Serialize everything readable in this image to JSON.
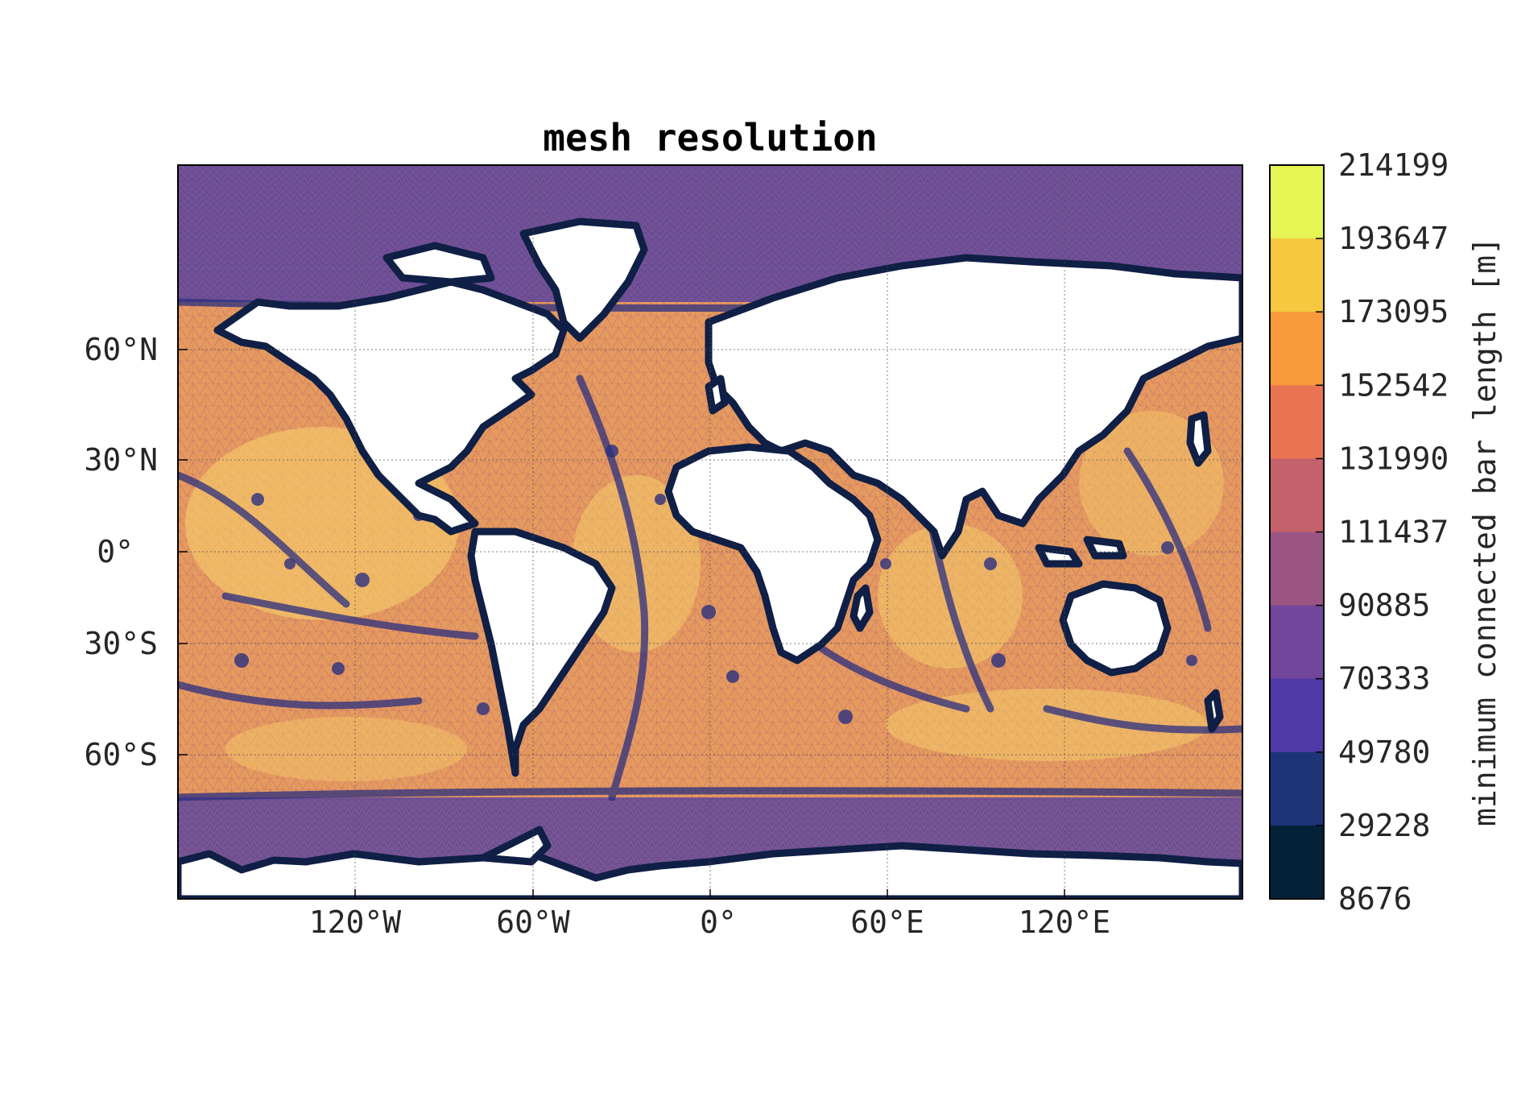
{
  "title": "mesh resolution",
  "colorbar": {
    "label": "minimum connected bar length [m]",
    "ticks": [
      "214199",
      "193647",
      "173095",
      "152542",
      "131990",
      "111437",
      "90885",
      "70333",
      "49780",
      "29228",
      "8676"
    ],
    "colors": [
      "#e6f553",
      "#f5c840",
      "#f89a3c",
      "#ea7452",
      "#c5616b",
      "#9a5585",
      "#72469a",
      "#4f3aa8",
      "#1d3577",
      "#04213a"
    ]
  },
  "map": {
    "x_ticks": [
      "120°W",
      "60°W",
      "0°",
      "60°E",
      "120°E"
    ],
    "y_ticks": [
      "60°N",
      "30°N",
      "0°",
      "30°S",
      "60°S"
    ],
    "land_color": "#ffffff",
    "grid": true
  }
}
